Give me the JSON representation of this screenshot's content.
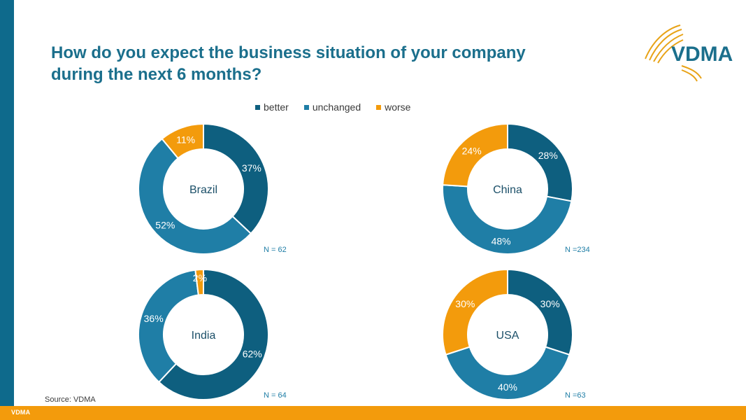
{
  "title_lines": [
    "How do you expect the business situation of your company",
    "during the next 6 months?"
  ],
  "brand": {
    "logo_text": "VDMA",
    "footer_text": "VDMA"
  },
  "source": "Source: VDMA",
  "colors": {
    "better": "#0e5f7f",
    "unchanged": "#1f7ea6",
    "worse": "#f39b0c",
    "frame": "#0e6a8c",
    "footer": "#f39b0c"
  },
  "legend": [
    {
      "key": "better",
      "label": "better"
    },
    {
      "key": "unchanged",
      "label": "unchanged"
    },
    {
      "key": "worse",
      "label": "worse"
    }
  ],
  "chart_data": [
    {
      "type": "pie",
      "title": "Brazil",
      "n_label": "N = 62",
      "series": [
        "better",
        "unchanged",
        "worse"
      ],
      "values": [
        37,
        52,
        11
      ],
      "labels": [
        "37%",
        "52%",
        "11%"
      ]
    },
    {
      "type": "pie",
      "title": "China",
      "n_label": "N =234",
      "series": [
        "better",
        "unchanged",
        "worse"
      ],
      "values": [
        28,
        48,
        24
      ],
      "labels": [
        "28%",
        "48%",
        "24%"
      ]
    },
    {
      "type": "pie",
      "title": "India",
      "n_label": "N = 64",
      "series": [
        "better",
        "unchanged",
        "worse"
      ],
      "values": [
        62,
        36,
        2
      ],
      "labels": [
        "62%",
        "36%",
        "2%"
      ]
    },
    {
      "type": "pie",
      "title": "USA",
      "n_label": "N =63",
      "series": [
        "better",
        "unchanged",
        "worse"
      ],
      "values": [
        30,
        40,
        30
      ],
      "labels": [
        "30%",
        "40%",
        "30%"
      ]
    }
  ]
}
